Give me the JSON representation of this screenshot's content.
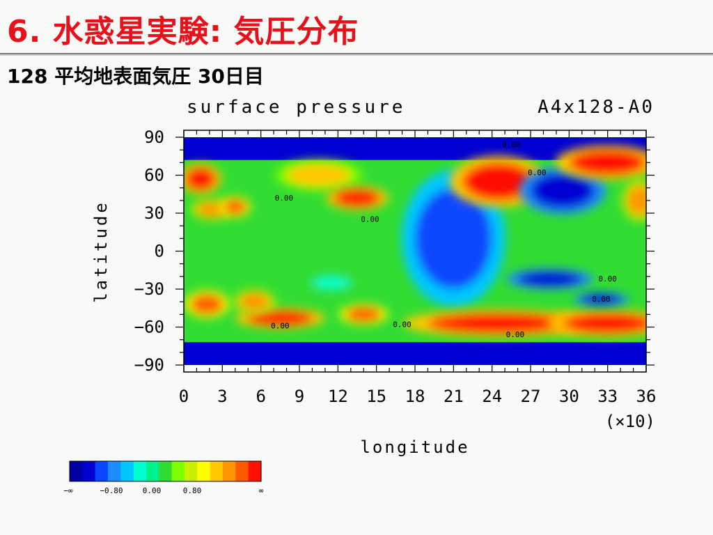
{
  "slide": {
    "title": "6. 水惑星実験: 気圧分布",
    "subtitle": "128 平均地表面気圧 30日目"
  },
  "chart_data": {
    "type": "heatmap",
    "title": "surface pressure",
    "run_label": "A4x128-A0",
    "xlabel": "longitude",
    "ylabel": "latitude",
    "x_scale_note": "(×10)",
    "xlim": [
      0,
      36
    ],
    "ylim": [
      -90,
      90
    ],
    "x_ticks": [
      "0",
      "3",
      "6",
      "9",
      "12",
      "15",
      "18",
      "21",
      "24",
      "27",
      "30",
      "33",
      "36"
    ],
    "y_ticks": [
      "90",
      "60",
      "30",
      "0",
      "−30",
      "−60",
      "−90"
    ],
    "contour_labels": [
      {
        "text": "0.00",
        "lon": 25.5,
        "lat": 82
      },
      {
        "text": "0.00",
        "lon": 27.5,
        "lat": 60
      },
      {
        "text": "0.00",
        "lon": 7.8,
        "lat": 40
      },
      {
        "text": "0.00",
        "lon": 14.5,
        "lat": 23
      },
      {
        "text": "0.00",
        "lon": 33,
        "lat": -24
      },
      {
        "text": "0.00",
        "lon": 32.5,
        "lat": -40
      },
      {
        "text": "0.00",
        "lon": 7.5,
        "lat": -61
      },
      {
        "text": "0.00",
        "lon": 17,
        "lat": -60
      },
      {
        "text": "0.00",
        "lon": 25.8,
        "lat": -68
      }
    ],
    "colorbar": {
      "colors": [
        "#0000a0",
        "#0000d2",
        "#0a46ff",
        "#1e8cff",
        "#00c8ff",
        "#00ffd2",
        "#00f08c",
        "#32dc32",
        "#7dff00",
        "#c8f000",
        "#ffff00",
        "#ffc800",
        "#ff9600",
        "#ff5a00",
        "#ff1000"
      ],
      "tick_labels": [
        "−∞",
        "−0.80",
        "0.00",
        "0.80",
        "∞"
      ]
    },
    "regions": [
      {
        "level": 14,
        "lon": 1.3,
        "lat": 57,
        "rlon": 1.2,
        "rlat": 9
      },
      {
        "level": 12,
        "lon": 2.2,
        "lat": 33,
        "rlon": 1.2,
        "rlat": 6
      },
      {
        "level": 13,
        "lon": 4.0,
        "lat": 35,
        "rlon": 0.9,
        "rlat": 6
      },
      {
        "level": 11,
        "lon": 10.5,
        "lat": 60,
        "rlon": 2.5,
        "rlat": 9
      },
      {
        "level": 14,
        "lon": 13.5,
        "lat": 42,
        "rlon": 1.8,
        "rlat": 7
      },
      {
        "level": 2,
        "lon": 21.0,
        "lat": 10,
        "rlon": 3.0,
        "rlat": 40
      },
      {
        "level": 14,
        "lon": 24.5,
        "lat": 55,
        "rlon": 2.8,
        "rlat": 15
      },
      {
        "level": 1,
        "lon": 29.5,
        "lat": 48,
        "rlon": 2.5,
        "rlat": 14
      },
      {
        "level": 14,
        "lon": 33.0,
        "lat": 70,
        "rlon": 3.0,
        "rlat": 10
      },
      {
        "level": 12,
        "lon": 35.5,
        "lat": 40,
        "rlon": 1.0,
        "rlat": 12
      },
      {
        "level": 14,
        "lon": 7.5,
        "lat": -53,
        "rlon": 2.6,
        "rlat": 6
      },
      {
        "level": 13,
        "lon": 1.8,
        "lat": -42,
        "rlon": 1.3,
        "rlat": 8
      },
      {
        "level": 12,
        "lon": 5.5,
        "lat": -40,
        "rlon": 1.2,
        "rlat": 7
      },
      {
        "level": 13,
        "lon": 14.0,
        "lat": -50,
        "rlon": 1.4,
        "rlat": 6
      },
      {
        "level": 14,
        "lon": 24.5,
        "lat": -57,
        "rlon": 5.5,
        "rlat": 8
      },
      {
        "level": 14,
        "lon": 33.0,
        "lat": -57,
        "rlon": 3.5,
        "rlat": 8
      },
      {
        "level": 1,
        "lon": 28.5,
        "lat": -22,
        "rlon": 2.5,
        "rlat": 6
      },
      {
        "level": 1,
        "lon": 32.5,
        "lat": -38,
        "rlon": 1.6,
        "rlat": 4
      },
      {
        "level": 5,
        "lon": 11.5,
        "lat": -25,
        "rlon": 1.5,
        "rlat": 5
      }
    ]
  }
}
